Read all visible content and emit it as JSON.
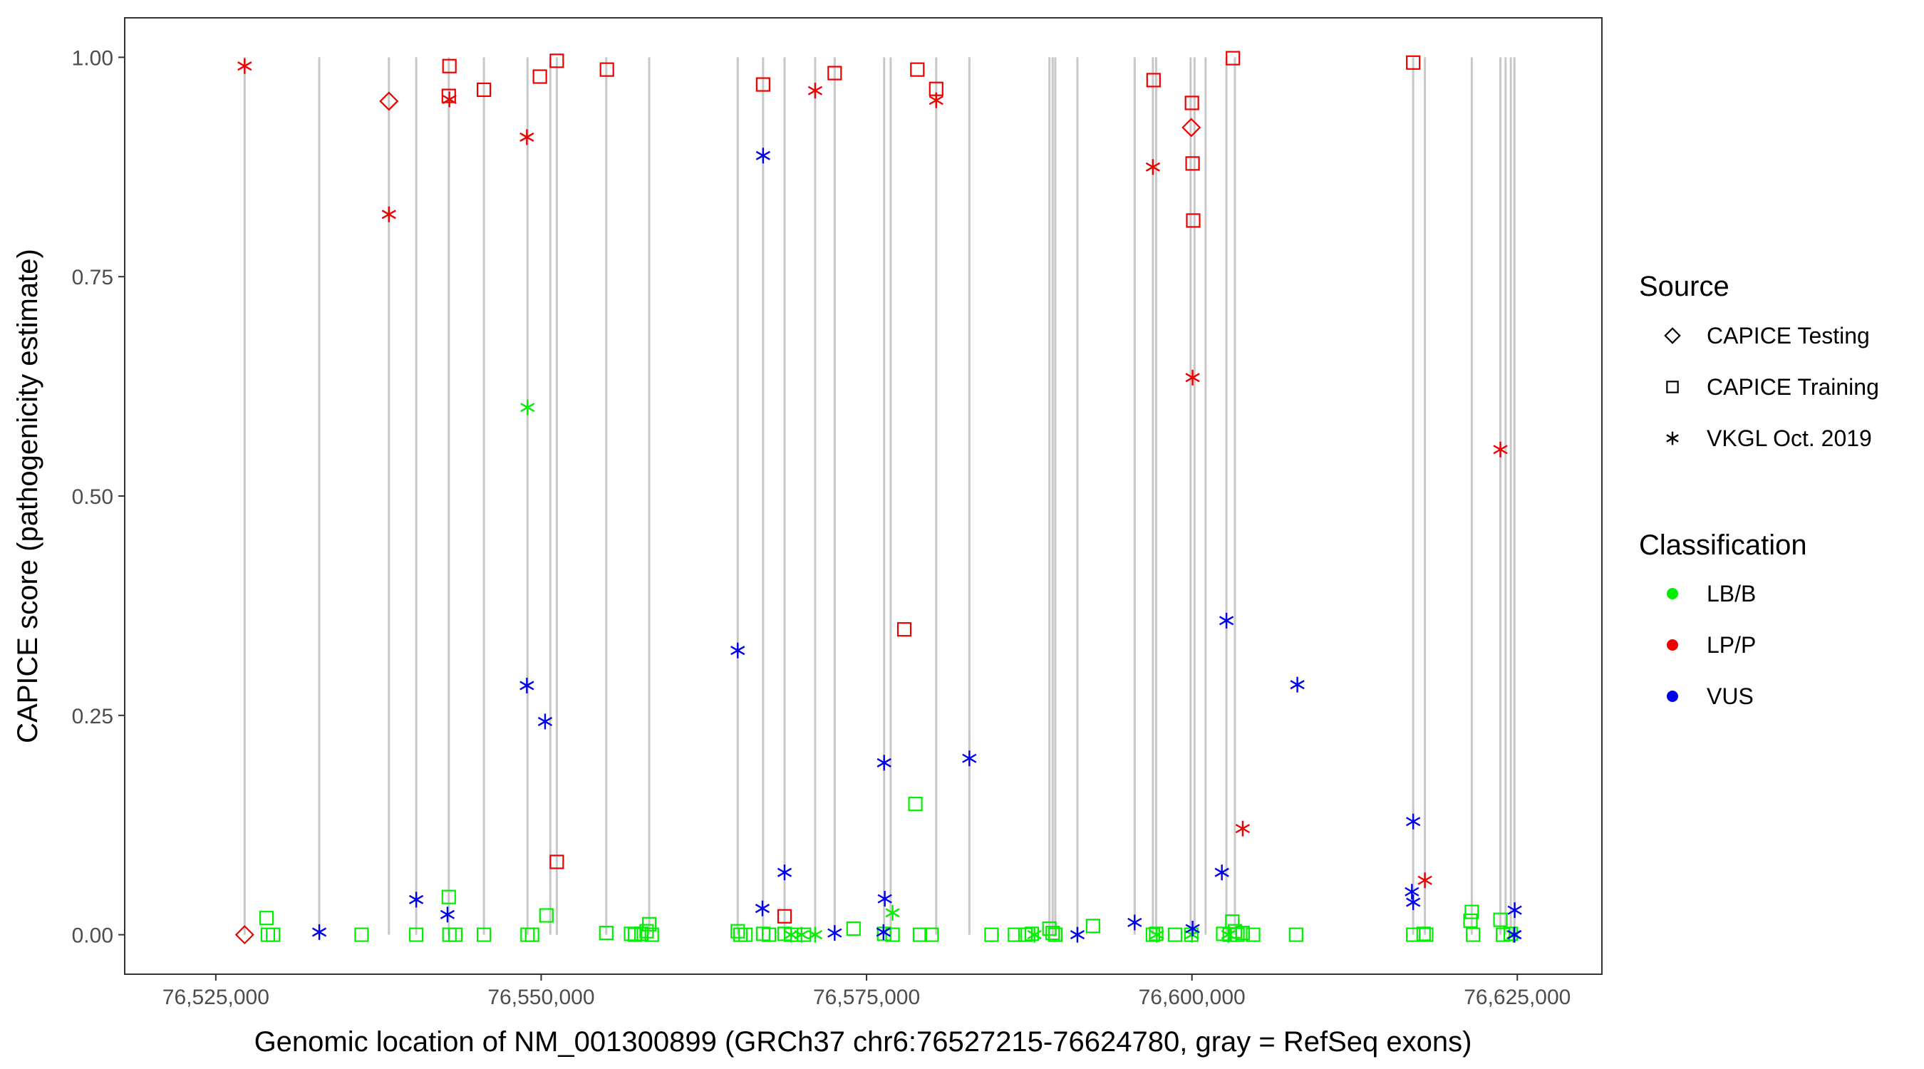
{
  "chart_data": {
    "type": "scatter",
    "title": "",
    "xlabel": "Genomic location of NM_001300899 (GRCh37 chr6:76527215-76624780, gray = RefSeq exons)",
    "ylabel": "CAPICE score (pathogenicity estimate)",
    "xlim": [
      76518000,
      76631500
    ],
    "ylim": [
      -0.045,
      1.045
    ],
    "x_ticks": [
      76525000,
      76550000,
      76575000,
      76600000,
      76625000
    ],
    "x_tick_labels": [
      "76,525,000",
      "76,550,000",
      "76,575,000",
      "76,600,000",
      "76,625,000"
    ],
    "y_ticks": [
      0,
      0.25,
      0.5,
      0.75,
      1.0
    ],
    "y_tick_labels": [
      "0.00",
      "0.25",
      "0.50",
      "0.75",
      "1.00"
    ],
    "grid": false,
    "exon_color": "#c8c8c8",
    "exon_positions": [
      76527215,
      76532950,
      76538300,
      76540400,
      76542900,
      76545600,
      76548950,
      76550700,
      76551200,
      76555000,
      76558300,
      76565100,
      76567050,
      76568700,
      76571050,
      76572550,
      76576350,
      76576850,
      76580350,
      76582900,
      76589050,
      76589300,
      76589500,
      76591200,
      76595600,
      76597000,
      76597250,
      76599900,
      76600200,
      76601050,
      76602650,
      76603300,
      76617000,
      76617900,
      76621500,
      76623700,
      76624100,
      76624500,
      76624780
    ],
    "legend": {
      "position": "right",
      "source_title": "Source",
      "source_items": [
        {
          "label": "CAPICE Testing",
          "shape": "diamond"
        },
        {
          "label": "CAPICE Training",
          "shape": "square"
        },
        {
          "label": "VKGL Oct. 2019",
          "shape": "asterisk"
        }
      ],
      "class_title": "Classification",
      "class_items": [
        {
          "label": "LB/B",
          "color": "#00ee00"
        },
        {
          "label": "LP/P",
          "color": "#ee0000"
        },
        {
          "label": "VUS",
          "color": "#0000ee"
        }
      ]
    },
    "series": [
      {
        "source": "CAPICE Testing",
        "classification": "LP/P",
        "points": [
          [
            76527215,
            0.0
          ],
          [
            76538300,
            0.95
          ],
          [
            76599950,
            0.92
          ]
        ]
      },
      {
        "source": "CAPICE Training",
        "classification": "LP/P",
        "points": [
          [
            76542950,
            0.99
          ],
          [
            76542900,
            0.956
          ],
          [
            76545600,
            0.963
          ],
          [
            76549900,
            0.978
          ],
          [
            76551200,
            0.996
          ],
          [
            76555050,
            0.986
          ],
          [
            76551200,
            0.083
          ],
          [
            76567050,
            0.969
          ],
          [
            76568700,
            0.021
          ],
          [
            76572550,
            0.982
          ],
          [
            76577900,
            0.348
          ],
          [
            76578900,
            0.986
          ],
          [
            76580350,
            0.964
          ],
          [
            76597050,
            0.974
          ],
          [
            76600000,
            0.948
          ],
          [
            76600050,
            0.879
          ],
          [
            76600100,
            0.814
          ],
          [
            76603150,
            0.999
          ],
          [
            76617000,
            0.994
          ]
        ]
      },
      {
        "source": "VKGL Oct. 2019",
        "classification": "LP/P",
        "points": [
          [
            76527215,
            0.99
          ],
          [
            76538300,
            0.821
          ],
          [
            76542950,
            0.952
          ],
          [
            76548900,
            0.909
          ],
          [
            76571050,
            0.962
          ],
          [
            76580350,
            0.951
          ],
          [
            76597000,
            0.875
          ],
          [
            76600050,
            0.635
          ],
          [
            76603900,
            0.121
          ],
          [
            76617900,
            0.062
          ],
          [
            76623700,
            0.553
          ]
        ]
      },
      {
        "source": "CAPICE Training",
        "classification": "LB/B",
        "points": [
          [
            76528900,
            0.019
          ],
          [
            76529000,
            0.0
          ],
          [
            76529400,
            0.0
          ],
          [
            76536200,
            0.0
          ],
          [
            76540400,
            0.0
          ],
          [
            76542900,
            0.043
          ],
          [
            76542950,
            0.0
          ],
          [
            76543400,
            0.0
          ],
          [
            76545600,
            0.0
          ],
          [
            76548950,
            0.0
          ],
          [
            76549300,
            0.0
          ],
          [
            76550400,
            0.022
          ],
          [
            76555000,
            0.002
          ],
          [
            76556900,
            0.001
          ],
          [
            76557200,
            0.0
          ],
          [
            76557700,
            0.001
          ],
          [
            76558100,
            0.004
          ],
          [
            76558300,
            0.012
          ],
          [
            76558500,
            0.0
          ],
          [
            76565100,
            0.004
          ],
          [
            76565300,
            0.0
          ],
          [
            76565700,
            0.0
          ],
          [
            76567050,
            0.001
          ],
          [
            76567500,
            0.0
          ],
          [
            76568700,
            0.001
          ],
          [
            76569200,
            0.0
          ],
          [
            76570200,
            0.0
          ],
          [
            76574000,
            0.007
          ],
          [
            76576350,
            0.001
          ],
          [
            76577000,
            0.0
          ],
          [
            76578750,
            0.149
          ],
          [
            76579100,
            0.0
          ],
          [
            76580000,
            0.0
          ],
          [
            76584600,
            0.0
          ],
          [
            76586400,
            0.0
          ],
          [
            76587200,
            0.0
          ],
          [
            76587700,
            0.001
          ],
          [
            76589050,
            0.007
          ],
          [
            76589300,
            0.002
          ],
          [
            76589500,
            0.0
          ],
          [
            76592400,
            0.01
          ],
          [
            76597000,
            0.0
          ],
          [
            76597250,
            0.001
          ],
          [
            76598700,
            0.0
          ],
          [
            76599950,
            0.0
          ],
          [
            76602400,
            0.001
          ],
          [
            76602900,
            0.0
          ],
          [
            76603100,
            0.015
          ],
          [
            76603300,
            0.004
          ],
          [
            76603500,
            0.0
          ],
          [
            76603900,
            0.002
          ],
          [
            76604700,
            0.0
          ],
          [
            76608000,
            0.0
          ],
          [
            76617000,
            0.0
          ],
          [
            76617800,
            0.001
          ],
          [
            76618000,
            0.0
          ],
          [
            76621400,
            0.016
          ],
          [
            76621500,
            0.026
          ],
          [
            76621600,
            0.0
          ],
          [
            76623700,
            0.017
          ],
          [
            76623900,
            0.0
          ],
          [
            76624500,
            0.001
          ]
        ]
      },
      {
        "source": "VKGL Oct. 2019",
        "classification": "LB/B",
        "points": [
          [
            76548950,
            0.601
          ],
          [
            76569200,
            0.0
          ],
          [
            76570000,
            0.0
          ],
          [
            76571050,
            0.0
          ],
          [
            76577000,
            0.025
          ],
          [
            76587900,
            0.0
          ],
          [
            76597300,
            0.0
          ],
          [
            76600000,
            0.0
          ],
          [
            76602800,
            0.0
          ],
          [
            76624700,
            0.0
          ]
        ]
      },
      {
        "source": "VKGL Oct. 2019",
        "classification": "VUS",
        "points": [
          [
            76532950,
            0.003
          ],
          [
            76540400,
            0.04
          ],
          [
            76542800,
            0.023
          ],
          [
            76548900,
            0.284
          ],
          [
            76550300,
            0.243
          ],
          [
            76565100,
            0.324
          ],
          [
            76567050,
            0.888
          ],
          [
            76567000,
            0.03
          ],
          [
            76568700,
            0.071
          ],
          [
            76572550,
            0.002
          ],
          [
            76576350,
            0.196
          ],
          [
            76576400,
            0.041
          ],
          [
            76576300,
            0.003
          ],
          [
            76582900,
            0.201
          ],
          [
            76591200,
            0.0
          ],
          [
            76595600,
            0.014
          ],
          [
            76600050,
            0.007
          ],
          [
            76602650,
            0.358
          ],
          [
            76602300,
            0.071
          ],
          [
            76608100,
            0.285
          ],
          [
            76617000,
            0.129
          ],
          [
            76616900,
            0.049
          ],
          [
            76617000,
            0.037
          ],
          [
            76624800,
            0.028
          ],
          [
            76624780,
            0.0
          ]
        ]
      }
    ]
  }
}
